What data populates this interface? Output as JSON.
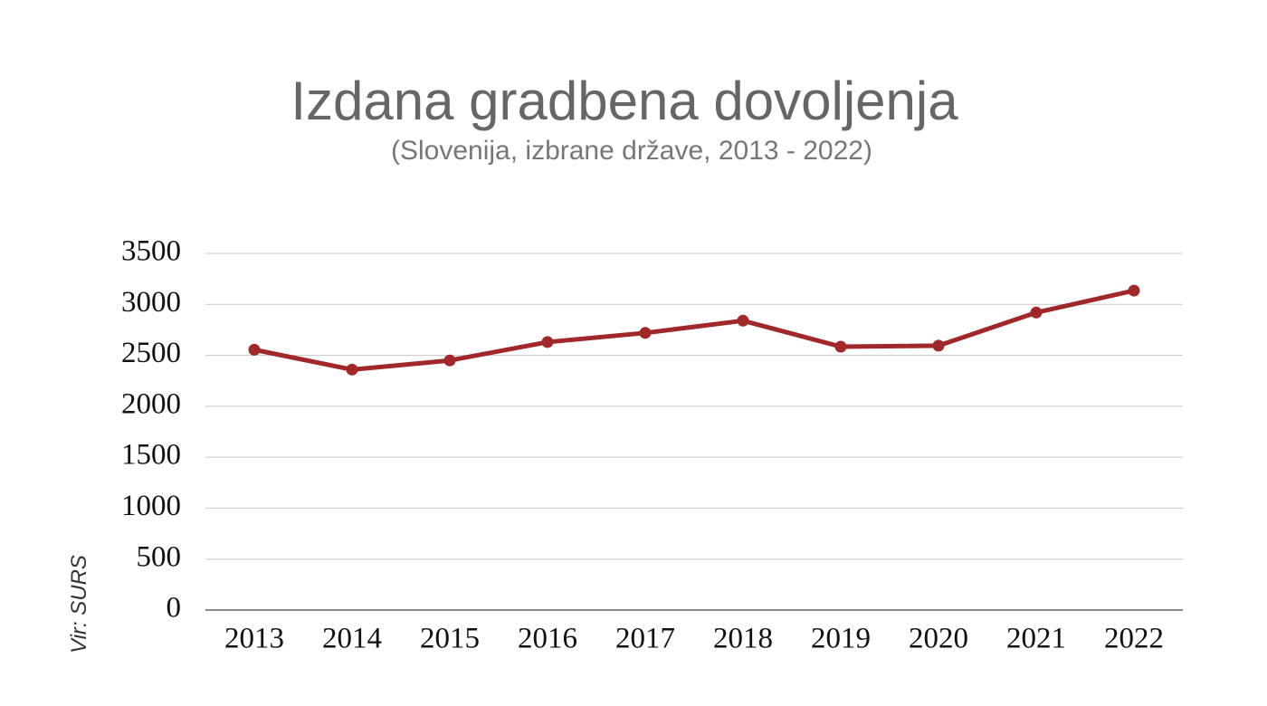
{
  "chart_data": {
    "type": "line",
    "title": "Izdana gradbena dovoljenja",
    "subtitle": "(Slovenija, izbrane države, 2013 - 2022)",
    "source": "Vir: SURS",
    "categories": [
      "2013",
      "2014",
      "2015",
      "2016",
      "2017",
      "2018",
      "2019",
      "2020",
      "2021",
      "2022"
    ],
    "series": [
      {
        "name": "Izdana gradbena dovoljenja",
        "color": "#a1282a",
        "values": [
          2555,
          2360,
          2450,
          2630,
          2720,
          2840,
          2585,
          2595,
          2920,
          3135
        ]
      }
    ],
    "ylim": [
      0,
      3500
    ],
    "yticks": [
      0,
      500,
      1000,
      1500,
      2000,
      2500,
      3000,
      3500
    ],
    "grid": true
  }
}
